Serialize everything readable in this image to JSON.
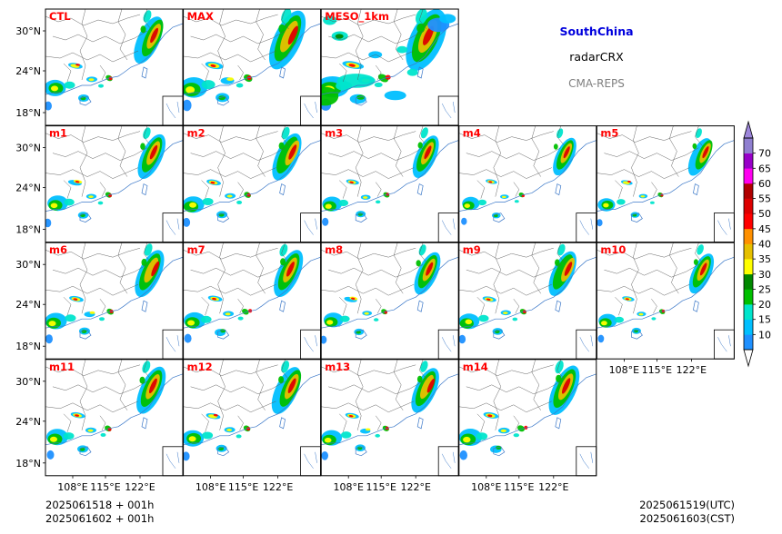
{
  "header": {
    "region": "SouthChina",
    "product": "radarCRX",
    "system": "CMA-REPS",
    "region_color": "#0000dd",
    "product_color": "#000000",
    "system_color": "#808080"
  },
  "panels": [
    {
      "label": "CTL",
      "row": 0,
      "col": 0,
      "coverage": 1.0
    },
    {
      "label": "MAX",
      "row": 0,
      "col": 1,
      "coverage": 1.25
    },
    {
      "label": "MESO_1km",
      "row": 0,
      "col": 2,
      "coverage": 2.2
    },
    {
      "label": "m1",
      "row": 1,
      "col": 0,
      "coverage": 0.95
    },
    {
      "label": "m2",
      "row": 1,
      "col": 1,
      "coverage": 1.0
    },
    {
      "label": "m3",
      "row": 1,
      "col": 2,
      "coverage": 0.9
    },
    {
      "label": "m4",
      "row": 1,
      "col": 3,
      "coverage": 0.8
    },
    {
      "label": "m5",
      "row": 1,
      "col": 4,
      "coverage": 0.8
    },
    {
      "label": "m6",
      "row": 2,
      "col": 0,
      "coverage": 1.0
    },
    {
      "label": "m7",
      "row": 2,
      "col": 1,
      "coverage": 1.0
    },
    {
      "label": "m8",
      "row": 2,
      "col": 2,
      "coverage": 0.9
    },
    {
      "label": "m9",
      "row": 2,
      "col": 3,
      "coverage": 0.95
    },
    {
      "label": "m10",
      "row": 2,
      "col": 4,
      "coverage": 0.85
    },
    {
      "label": "m11",
      "row": 3,
      "col": 0,
      "coverage": 1.0
    },
    {
      "label": "m12",
      "row": 3,
      "col": 1,
      "coverage": 1.0
    },
    {
      "label": "m13",
      "row": 3,
      "col": 2,
      "coverage": 0.95
    },
    {
      "label": "m14",
      "row": 3,
      "col": 3,
      "coverage": 1.05
    }
  ],
  "panel_label_color": "#ff0000",
  "lat_ticks": [
    "30°N",
    "24°N",
    "18°N"
  ],
  "lon_ticks": [
    "108°E",
    "115°E",
    "122°E"
  ],
  "colorbar": {
    "ticks": [
      "10",
      "15",
      "20",
      "25",
      "30",
      "35",
      "40",
      "45",
      "50",
      "55",
      "60",
      "65",
      "70"
    ],
    "colors": [
      "#1e90ff",
      "#00bfff",
      "#00e5cc",
      "#00c000",
      "#008800",
      "#ffff00",
      "#e6c000",
      "#ff9000",
      "#ff0000",
      "#dd0000",
      "#b00000",
      "#ff00f0",
      "#9800c8",
      "#8f7fd0"
    ],
    "under_color": "#ffffff",
    "over_color": "#9d86db"
  },
  "footer": {
    "init_utc": "2025061518  +  001h",
    "init_cst": "2025061602  +  001h",
    "valid_utc": "2025061519(UTC)",
    "valid_cst": "2025061603(CST)"
  }
}
